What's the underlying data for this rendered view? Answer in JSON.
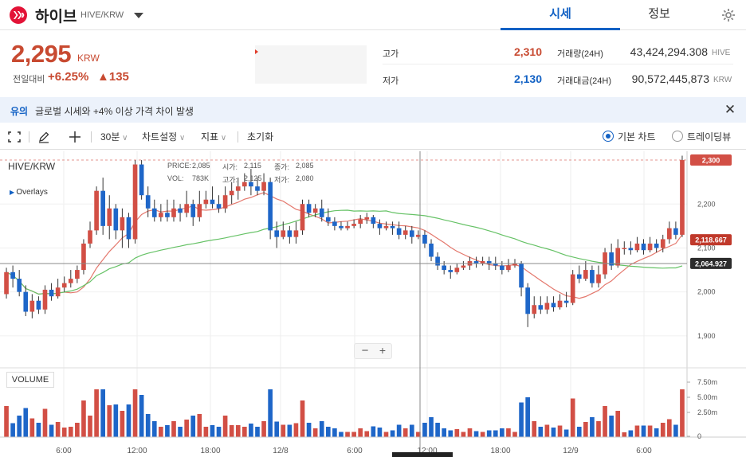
{
  "header": {
    "coin_name": "하이브",
    "pair": "HIVE/KRW",
    "tabs": [
      {
        "label": "시세"
      },
      {
        "label": "정보"
      }
    ]
  },
  "ticker": {
    "price": "2,295",
    "unit": "KRW",
    "change_label": "전일대비",
    "change_pct": "+6.25%",
    "change_amt": "▲135",
    "high_label": "고가",
    "high": "2,310",
    "low_label": "저가",
    "low": "2,130",
    "volume_label": "거래량(24H)",
    "volume": "43,424,294.308",
    "volume_unit": "HIVE",
    "amount_label": "거래대금(24H)",
    "amount": "90,572,445,873",
    "amount_unit": "KRW"
  },
  "notice": {
    "tag": "유의",
    "text": "글로벌 시세와 +4% 이상 가격 차이 발생"
  },
  "toolbar": {
    "interval": "30분",
    "chart_settings": "차트설정",
    "indicators": "지표",
    "reset": "초기화",
    "chart_basic": "기본 차트",
    "chart_tv": "트레이딩뷰"
  },
  "chart": {
    "pair": "HIVE/KRW",
    "overlays": "Overlays",
    "ohlc": {
      "price_label": "PRICE:",
      "price": "2,085",
      "open_label": "시가:",
      "open": "2,115",
      "close_label": "종가:",
      "close": "2,085",
      "vol_label": "VOL:",
      "vol": "783K",
      "high_label": "고가:",
      "high": "2,125",
      "low_label": "저가:",
      "low": "2,080"
    },
    "volume_label": "VOLUME",
    "zoom_minus": "−",
    "zoom_plus": "+",
    "tag_current": "2,300",
    "tag_ma_short": "2,118.667",
    "tag_ma_long": "2,064.927",
    "crosshair_x_label": "12/9 12:00"
  },
  "chart_data": {
    "type": "candlestick",
    "interval": "30분",
    "price_axis": {
      "ticks": [
        "2,200",
        "2,100",
        "2,000",
        "1,900"
      ],
      "range": [
        1840,
        2320
      ]
    },
    "volume_axis": {
      "ticks": [
        "7.50m",
        "5.00m",
        "2.50m",
        "0"
      ]
    },
    "time_axis": {
      "ticks": [
        "6:00",
        "12:00",
        "18:00",
        "12/8",
        "6:00",
        "12:00",
        "18:00",
        "12/9",
        "6:00"
      ]
    },
    "candles": [
      [
        1995,
        2045,
        2055,
        1985
      ],
      [
        2045,
        2030,
        2060,
        2010
      ],
      [
        2030,
        2000,
        2050,
        1990
      ],
      [
        2000,
        1955,
        2015,
        1945
      ],
      [
        1955,
        1980,
        1995,
        1940
      ],
      [
        1980,
        1960,
        1990,
        1950
      ],
      [
        1960,
        2005,
        2015,
        1950
      ],
      [
        2005,
        1990,
        2020,
        1980
      ],
      [
        1990,
        2010,
        2030,
        1985
      ],
      [
        2010,
        2020,
        2035,
        2000
      ],
      [
        2020,
        2030,
        2050,
        2010
      ],
      [
        2030,
        2050,
        2060,
        2020
      ],
      [
        2050,
        2110,
        2120,
        2040
      ],
      [
        2110,
        2140,
        2160,
        2100
      ],
      [
        2140,
        2230,
        2240,
        2130
      ],
      [
        2230,
        2150,
        2260,
        2130
      ],
      [
        2150,
        2190,
        2220,
        2120
      ],
      [
        2190,
        2140,
        2200,
        2120
      ],
      [
        2140,
        2170,
        2190,
        2100
      ],
      [
        2170,
        2120,
        2180,
        2100
      ],
      [
        2120,
        2290,
        2300,
        2110
      ],
      [
        2290,
        2220,
        2300,
        2210
      ],
      [
        2220,
        2190,
        2240,
        2170
      ],
      [
        2190,
        2170,
        2210,
        2160
      ],
      [
        2170,
        2180,
        2200,
        2160
      ],
      [
        2180,
        2170,
        2210,
        2160
      ],
      [
        2170,
        2190,
        2210,
        2160
      ],
      [
        2190,
        2180,
        2200,
        2160
      ],
      [
        2180,
        2200,
        2230,
        2170
      ],
      [
        2200,
        2170,
        2210,
        2150
      ],
      [
        2170,
        2200,
        2230,
        2160
      ],
      [
        2200,
        2210,
        2230,
        2190
      ],
      [
        2210,
        2200,
        2240,
        2190
      ],
      [
        2200,
        2190,
        2220,
        2180
      ],
      [
        2190,
        2220,
        2240,
        2180
      ],
      [
        2220,
        2230,
        2250,
        2200
      ],
      [
        2230,
        2240,
        2260,
        2210
      ],
      [
        2240,
        2250,
        2270,
        2230
      ],
      [
        2250,
        2240,
        2280,
        2220
      ],
      [
        2240,
        2230,
        2260,
        2220
      ],
      [
        2230,
        2250,
        2270,
        2220
      ],
      [
        2250,
        2140,
        2260,
        2120
      ],
      [
        2140,
        2125,
        2160,
        2100
      ],
      [
        2125,
        2140,
        2160,
        2120
      ],
      [
        2140,
        2125,
        2150,
        2110
      ],
      [
        2125,
        2140,
        2160,
        2110
      ],
      [
        2140,
        2200,
        2210,
        2130
      ],
      [
        2200,
        2180,
        2210,
        2170
      ],
      [
        2180,
        2190,
        2200,
        2170
      ],
      [
        2190,
        2170,
        2210,
        2160
      ],
      [
        2170,
        2160,
        2190,
        2150
      ],
      [
        2160,
        2150,
        2170,
        2140
      ],
      [
        2150,
        2145,
        2160,
        2140
      ],
      [
        2145,
        2150,
        2160,
        2140
      ],
      [
        2150,
        2155,
        2165,
        2145
      ],
      [
        2155,
        2165,
        2175,
        2145
      ],
      [
        2165,
        2170,
        2180,
        2155
      ],
      [
        2170,
        2155,
        2175,
        2145
      ],
      [
        2155,
        2145,
        2165,
        2130
      ],
      [
        2145,
        2150,
        2160,
        2140
      ],
      [
        2150,
        2145,
        2160,
        2130
      ],
      [
        2145,
        2130,
        2160,
        2120
      ],
      [
        2130,
        2140,
        2150,
        2120
      ],
      [
        2140,
        2125,
        2150,
        2110
      ],
      [
        2125,
        2130,
        2140,
        2120
      ],
      [
        2130,
        2110,
        2140,
        2100
      ],
      [
        2110,
        2080,
        2120,
        2070
      ],
      [
        2080,
        2060,
        2090,
        2050
      ],
      [
        2060,
        2050,
        2070,
        2040
      ],
      [
        2050,
        2045,
        2060,
        2030
      ],
      [
        2045,
        2055,
        2065,
        2040
      ],
      [
        2055,
        2060,
        2070,
        2050
      ],
      [
        2060,
        2070,
        2080,
        2050
      ],
      [
        2070,
        2065,
        2080,
        2055
      ],
      [
        2065,
        2070,
        2080,
        2060
      ],
      [
        2070,
        2065,
        2080,
        2050
      ],
      [
        2065,
        2060,
        2080,
        2050
      ],
      [
        2060,
        2050,
        2070,
        2040
      ],
      [
        2050,
        2060,
        2075,
        2045
      ],
      [
        2060,
        2065,
        2075,
        2055
      ],
      [
        2065,
        2010,
        2070,
        1990
      ],
      [
        2010,
        1950,
        2020,
        1920
      ],
      [
        1950,
        1970,
        1990,
        1940
      ],
      [
        1970,
        1960,
        1990,
        1950
      ],
      [
        1960,
        1975,
        1990,
        1950
      ],
      [
        1975,
        1965,
        1990,
        1955
      ],
      [
        1965,
        1980,
        1995,
        1960
      ],
      [
        1980,
        1975,
        2000,
        1965
      ],
      [
        1975,
        2040,
        2050,
        1970
      ],
      [
        2040,
        2030,
        2060,
        2020
      ],
      [
        2030,
        2050,
        2070,
        2025
      ],
      [
        2050,
        2020,
        2060,
        2010
      ],
      [
        2020,
        2040,
        2060,
        2010
      ],
      [
        2040,
        2090,
        2100,
        2030
      ],
      [
        2090,
        2060,
        2110,
        2050
      ],
      [
        2060,
        2100,
        2120,
        2055
      ],
      [
        2100,
        2100,
        2115,
        2085
      ],
      [
        2100,
        2095,
        2115,
        2085
      ],
      [
        2095,
        2110,
        2125,
        2090
      ],
      [
        2110,
        2095,
        2120,
        2085
      ],
      [
        2095,
        2110,
        2125,
        2090
      ],
      [
        2110,
        2100,
        2120,
        2090
      ],
      [
        2100,
        2120,
        2130,
        2090
      ],
      [
        2120,
        2145,
        2160,
        2110
      ],
      [
        2145,
        2130,
        2160,
        2120
      ],
      [
        2130,
        2300,
        2310,
        2125
      ]
    ],
    "ma_short_last": 2118.667,
    "ma_long_last": 2064.927
  }
}
